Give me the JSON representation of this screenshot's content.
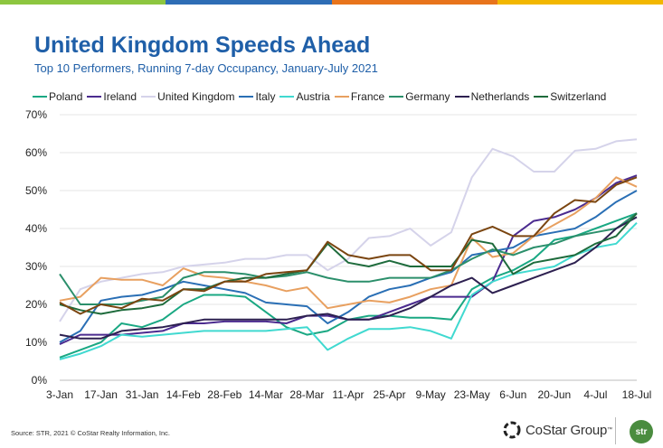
{
  "header": {
    "top_bar_colors": [
      "#8dc63f",
      "#2e6db5",
      "#e8741c",
      "#f2b701"
    ],
    "title": "United Kingdom Speeds Ahead",
    "subtitle": "Top 10 Performers, Running 7-day Occupancy, January-July 2021"
  },
  "footer": {
    "source": "Source: STR, 2021 © CoStar Realty Information, Inc.",
    "costar_logo_text": "CoStar Group",
    "costar_logo_mark": "™",
    "str_logo_text": "str"
  },
  "chart_data": {
    "type": "line",
    "title": "United Kingdom Speeds Ahead",
    "subtitle": "Top 10 Performers, Running 7-day Occupancy, January-July 2021",
    "xlabel": "",
    "ylabel": "",
    "ylim": [
      0,
      70
    ],
    "y_ticks": [
      0,
      10,
      20,
      30,
      40,
      50,
      60,
      70
    ],
    "y_tick_labels": [
      "0%",
      "10%",
      "20%",
      "30%",
      "40%",
      "50%",
      "60%",
      "70%"
    ],
    "x_ticks": [
      "3-Jan",
      "17-Jan",
      "31-Jan",
      "14-Feb",
      "28-Feb",
      "14-Mar",
      "28-Mar",
      "11-Apr",
      "25-Apr",
      "9-May",
      "23-May",
      "6-Jun",
      "20-Jun",
      "4-Jul",
      "18-Jul"
    ],
    "grid": "horizontal",
    "legend_position": "top",
    "x": [
      "3-Jan",
      "10-Jan",
      "17-Jan",
      "24-Jan",
      "31-Jan",
      "7-Feb",
      "14-Feb",
      "21-Feb",
      "28-Feb",
      "7-Mar",
      "14-Mar",
      "21-Mar",
      "28-Mar",
      "4-Apr",
      "11-Apr",
      "18-Apr",
      "25-Apr",
      "2-May",
      "9-May",
      "16-May",
      "23-May",
      "30-May",
      "6-Jun",
      "13-Jun",
      "20-Jun",
      "27-Jun",
      "4-Jul",
      "11-Jul",
      "18-Jul"
    ],
    "series": [
      {
        "name": "Poland",
        "color": "#1aa883",
        "values": [
          6,
          8,
          10,
          15,
          14,
          16,
          20,
          22.5,
          22.5,
          22,
          18,
          14,
          12,
          13,
          16,
          17,
          17,
          16.5,
          16.5,
          16,
          24,
          27,
          29,
          32,
          37,
          38,
          40,
          42,
          44
        ]
      },
      {
        "name": "Ireland",
        "color": "#4b2b8f",
        "values": [
          9.5,
          12,
          12,
          12,
          12.5,
          13,
          15,
          15,
          15.5,
          15.5,
          15.5,
          15,
          17,
          17,
          16,
          16,
          18,
          20,
          22,
          22,
          22,
          26,
          38,
          42,
          43,
          45,
          48,
          52,
          54
        ]
      },
      {
        "name": "United Kingdom",
        "color": "#d5d3ea",
        "values": [
          15.5,
          24,
          26,
          27,
          28,
          28.5,
          30,
          30.5,
          31,
          32,
          32,
          33,
          33,
          29,
          32,
          37.5,
          38,
          40,
          35.5,
          39,
          53.5,
          61,
          59,
          55,
          55,
          60.5,
          61,
          63,
          63.5
        ]
      },
      {
        "name": "Italy",
        "color": "#2a6fb5",
        "values": [
          10,
          13,
          21,
          22,
          22.5,
          24,
          26,
          25,
          24,
          23,
          20.5,
          20,
          19.5,
          15,
          18,
          22,
          24,
          25,
          27,
          28.5,
          33,
          34,
          35,
          38,
          39,
          40,
          43,
          47,
          50
        ]
      },
      {
        "name": "Austria",
        "color": "#40d9d0",
        "values": [
          5.5,
          7,
          9,
          12,
          11.5,
          12,
          12.5,
          13,
          13,
          13,
          13,
          13.5,
          14,
          8,
          11,
          13.5,
          13.5,
          14,
          13,
          11,
          22.5,
          26,
          28,
          29,
          30,
          33,
          35,
          36,
          41.5
        ]
      },
      {
        "name": "France",
        "color": "#e8a060",
        "values": [
          21,
          22,
          27,
          26.5,
          26.5,
          25,
          29.5,
          27.5,
          27,
          26,
          25,
          23.5,
          24.5,
          19,
          20,
          21,
          20.5,
          22,
          24,
          25,
          37.5,
          32.5,
          33.5,
          38,
          41,
          44,
          48,
          53.5,
          51
        ]
      },
      {
        "name": "Germany",
        "color": "#2b8f6b",
        "values": [
          28,
          20,
          20,
          20,
          21,
          22,
          27,
          28.5,
          28.5,
          28,
          27,
          27.5,
          28.5,
          27,
          26,
          26,
          27,
          27,
          27,
          29,
          32,
          34.5,
          33,
          35,
          36,
          38,
          39,
          40,
          44
        ]
      },
      {
        "name": "Netherlands",
        "color": "#2d2050",
        "values": [
          12,
          11,
          11,
          13,
          13.5,
          14,
          15,
          16,
          16,
          16,
          16,
          16,
          17,
          17.5,
          16,
          16,
          17,
          19,
          22,
          25,
          27,
          23,
          25,
          27,
          29,
          31,
          35,
          40,
          43
        ]
      },
      {
        "name": "Switzerland",
        "color": "#1e6b3c",
        "values": [
          20,
          18.5,
          17.5,
          18.5,
          19,
          20,
          24,
          24,
          26,
          27,
          27,
          28,
          29,
          36,
          31,
          30,
          31.5,
          30,
          30,
          30,
          37,
          36,
          28,
          31,
          32,
          33,
          36,
          38,
          44
        ]
      },
      {
        "name": "",
        "color": "#7a4510",
        "values": [
          20.5,
          17.5,
          20,
          19,
          21.5,
          21,
          24,
          23.5,
          26,
          26,
          28,
          28.5,
          29,
          36.5,
          33,
          32,
          33,
          33,
          29,
          29,
          38.5,
          40.5,
          38,
          38,
          44,
          47.5,
          47,
          51.5,
          53.5
        ]
      }
    ]
  }
}
